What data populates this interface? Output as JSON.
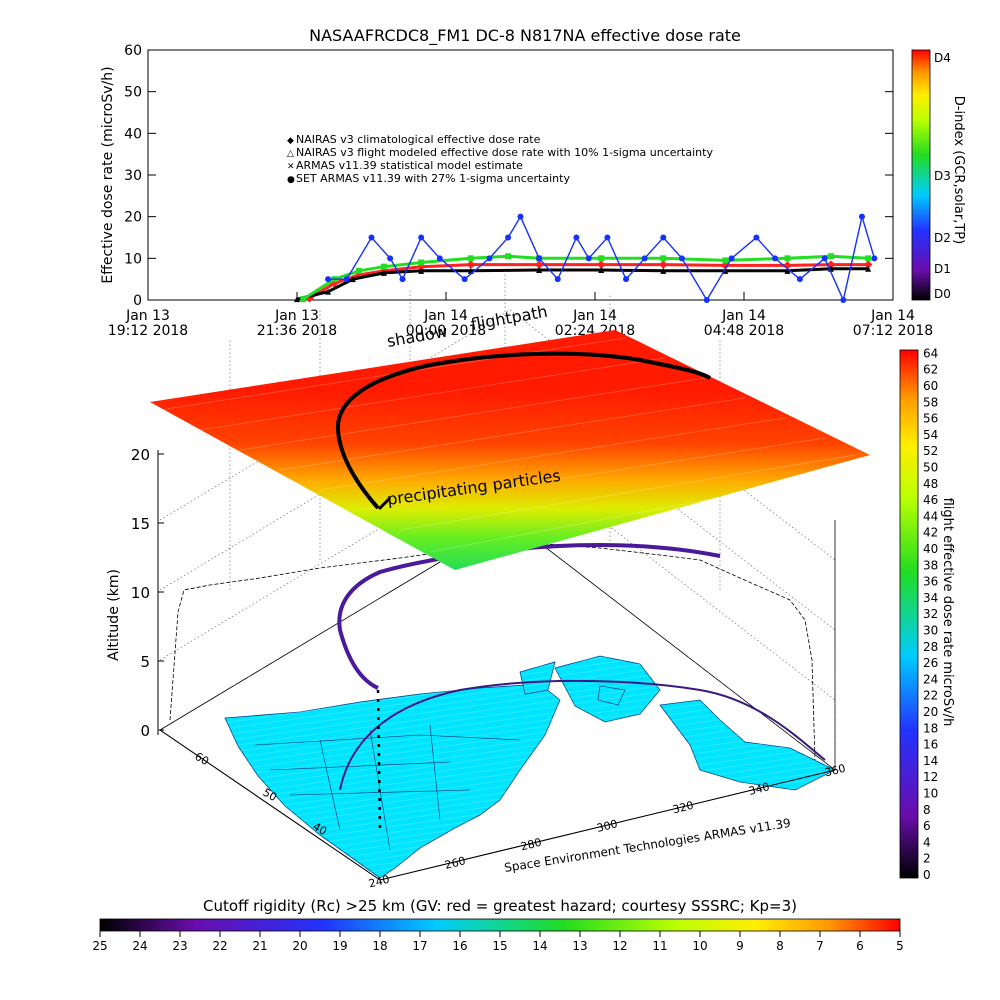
{
  "chart_data": [
    {
      "type": "scatter",
      "title": "NASAAFRCDC8_FM1 DC-8   N817NA effective dose rate",
      "ylabel": "Effective dose rate (microSv/h)",
      "ylim": [
        0,
        60
      ],
      "yticks": [
        "0",
        "10",
        "20",
        "30",
        "40",
        "50",
        "60"
      ],
      "x_range_hours": [
        19.2,
        31.2
      ],
      "xticks": [
        {
          "hour": 19.2,
          "day": "Jan 13",
          "time": "19:12 2018"
        },
        {
          "hour": 21.6,
          "day": "Jan 13",
          "time": "21:36 2018"
        },
        {
          "hour": 24.0,
          "day": "Jan 14",
          "time": "00:00 2018"
        },
        {
          "hour": 26.4,
          "day": "Jan 14",
          "time": "02:24 2018"
        },
        {
          "hour": 28.8,
          "day": "Jan 14",
          "time": "04:48 2018"
        },
        {
          "hour": 31.2,
          "day": "Jan 14",
          "time": "07:12 2018"
        }
      ],
      "legend": [
        {
          "label": "NAIRAS v3 climatological effective dose rate",
          "color": "#ff2020",
          "marker": "diamond"
        },
        {
          "label": "NAIRAS v3 flight modeled effective dose rate with 10% 1-sigma uncertainty",
          "color": "#000000",
          "marker": "triangle"
        },
        {
          "label": "ARMAS v11.39 statistical model estimate",
          "color": "#22dd22",
          "marker": "x"
        },
        {
          "label": "SET ARMAS v11.39 with 27% 1-sigma uncertainty",
          "color": "#1530ff",
          "marker": "circle"
        }
      ],
      "series": [
        {
          "name": "NAIRAS v3 climatological effective dose rate",
          "x": [
            21.8,
            22.2,
            22.6,
            23.0,
            23.6,
            24.4,
            25.5,
            26.5,
            27.5,
            28.5,
            29.5,
            30.2,
            30.8
          ],
          "y": [
            0.4,
            4,
            6,
            7,
            8,
            8.5,
            8.5,
            8.5,
            8.5,
            8.3,
            8.3,
            8.5,
            8.5
          ]
        },
        {
          "name": "NAIRAS v3 flight modeled effective dose rate with 10% 1-sigma uncertainty",
          "x": [
            21.6,
            22.1,
            22.5,
            23.0,
            23.6,
            24.4,
            25.5,
            26.5,
            27.5,
            28.5,
            29.5,
            30.2,
            30.8
          ],
          "y": [
            0.2,
            2,
            5,
            6.5,
            7,
            7,
            7.2,
            7.2,
            7,
            7,
            7,
            7.5,
            7.5
          ]
        },
        {
          "name": "ARMAS v11.39 statistical model estimate",
          "x": [
            21.7,
            22.2,
            22.6,
            23.0,
            23.6,
            24.4,
            25.0,
            25.5,
            26.5,
            27.5,
            28.5,
            29.5,
            30.2,
            30.8
          ],
          "y": [
            0.2,
            5,
            7,
            8,
            9,
            10,
            10.5,
            10,
            10,
            10,
            9.5,
            10,
            10.5,
            10
          ]
        },
        {
          "name": "SET ARMAS v11.39 with 27% 1-sigma uncertainty",
          "x": [
            22.1,
            22.4,
            22.8,
            23.1,
            23.3,
            23.6,
            23.9,
            24.3,
            24.7,
            25.0,
            25.2,
            25.5,
            25.8,
            26.1,
            26.3,
            26.6,
            26.9,
            27.2,
            27.5,
            27.8,
            28.2,
            28.6,
            29.0,
            29.3,
            29.7,
            30.1,
            30.4,
            30.7,
            30.9
          ],
          "y": [
            5,
            5,
            15,
            10,
            5,
            15,
            10,
            5,
            10,
            15,
            20,
            10,
            5,
            15,
            10,
            15,
            5,
            10,
            15,
            10,
            0,
            10,
            15,
            10,
            5,
            10,
            0,
            20,
            10
          ]
        }
      ],
      "colorbar": {
        "label": "D-index (GCR,solar,TP)",
        "ticks": [
          "D0",
          "D1",
          "D2",
          "D3",
          "D4"
        ]
      }
    },
    {
      "type": "scatter",
      "labels": {
        "shadow": "shadow",
        "flightpath": "flightpath",
        "precip": "precipitating particles",
        "credit": "Space Environment Technologies ARMAS v11.39"
      },
      "zlabel": "Altitude (km)",
      "zticks": [
        "0",
        "5",
        "10",
        "15",
        "20"
      ],
      "lat_ticks": [
        "40",
        "50",
        "60"
      ],
      "lon_ticks": [
        "240",
        "260",
        "280",
        "300",
        "320",
        "340",
        "360"
      ],
      "colorbar": {
        "label": "flight effective dose rate microSv/h",
        "ticks": [
          "0",
          "2",
          "4",
          "6",
          "8",
          "10",
          "12",
          "14",
          "16",
          "18",
          "20",
          "22",
          "24",
          "26",
          "28",
          "30",
          "32",
          "34",
          "36",
          "38",
          "40",
          "42",
          "44",
          "46",
          "48",
          "50",
          "52",
          "54",
          "56",
          "58",
          "60",
          "62",
          "64"
        ]
      }
    },
    {
      "type": "heatmap",
      "title": "Cutoff rigidity (Rc) >25 km (GV: red = greatest hazard; courtesy SSSRC; Kp=3)",
      "ticks": [
        "25",
        "24",
        "23",
        "22",
        "21",
        "20",
        "19",
        "18",
        "17",
        "16",
        "15",
        "14",
        "13",
        "12",
        "11",
        "10",
        "9",
        "8",
        "7",
        "6",
        "5"
      ]
    }
  ]
}
